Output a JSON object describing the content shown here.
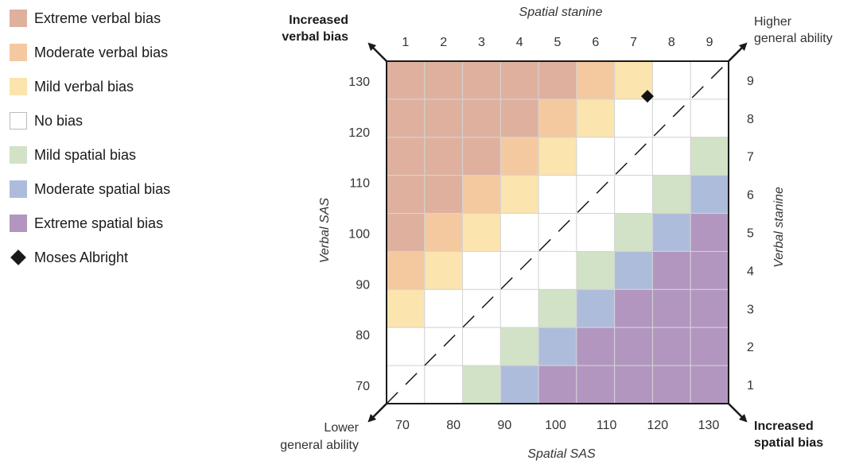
{
  "legend": {
    "items": [
      {
        "label": "Extreme verbal bias",
        "color": "#dfb09e"
      },
      {
        "label": "Moderate verbal bias",
        "color": "#f5c9a0"
      },
      {
        "label": "Mild verbal bias",
        "color": "#fbe4ad"
      },
      {
        "label": "No bias",
        "color": "#ffffff"
      },
      {
        "label": "Mild spatial bias",
        "color": "#d2e2c6"
      },
      {
        "label": "Moderate spatial bias",
        "color": "#aebcdc"
      },
      {
        "label": "Extreme spatial bias",
        "color": "#b296c0"
      }
    ],
    "marker_label": "Moses Albright"
  },
  "chart_data": {
    "type": "heatmap",
    "title_top": "Spatial stanine",
    "xlabel": "Spatial SAS",
    "ylabel": "Verbal SAS",
    "y2label": "Verbal stanine",
    "x_stanines": [
      "1",
      "2",
      "3",
      "4",
      "5",
      "6",
      "7",
      "8",
      "9"
    ],
    "y_stanines": [
      "9",
      "8",
      "7",
      "6",
      "5",
      "4",
      "3",
      "2",
      "1"
    ],
    "x_sas_ticks": [
      "70",
      "80",
      "90",
      "100",
      "110",
      "120",
      "130"
    ],
    "y_sas_ticks": [
      "130",
      "120",
      "110",
      "100",
      "90",
      "80",
      "70"
    ],
    "bias_levels": [
      "Extreme verbal bias",
      "Moderate verbal bias",
      "Mild verbal bias",
      "No bias",
      "Mild spatial bias",
      "Moderate spatial bias",
      "Extreme spatial bias"
    ],
    "rule": "bias level from spatial stanine minus verbal stanine: <=-4 extreme verbal, -3 moderate verbal, -2 mild verbal, -1..1 no bias, 2 mild spatial, 3 moderate spatial, >=4 extreme spatial",
    "marker": {
      "label": "Moses Albright",
      "spatial_sas": 118,
      "verbal_sas": 127
    },
    "corners": {
      "top_left": "Increased verbal bias",
      "top_right": "Higher general ability",
      "bottom_left": "Lower general ability",
      "bottom_right": "Increased spatial bias"
    }
  }
}
